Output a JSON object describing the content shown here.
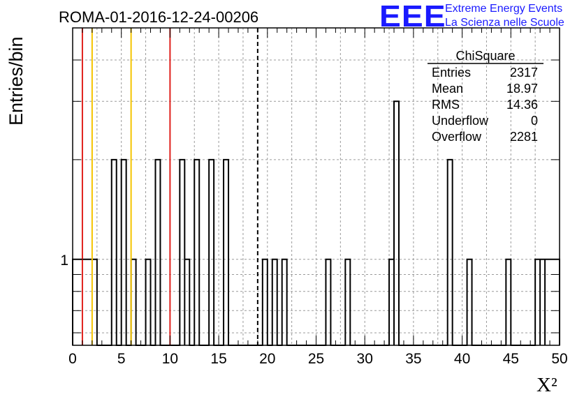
{
  "title": "ROMA-01-2016-12-24-00206",
  "logo": {
    "mark": "EEE",
    "line1": "Extreme Energy Events",
    "line2": "La Scienza nelle Scuole",
    "color": "#1a1aff"
  },
  "chart_data": {
    "type": "histogram",
    "xlabel": "X²",
    "ylabel": "Entries/bin",
    "xlim": [
      0,
      50
    ],
    "ylog": true,
    "ylim": [
      0.55,
      5
    ],
    "grid": true,
    "x_ticks": [
      0,
      5,
      10,
      15,
      20,
      25,
      30,
      35,
      40,
      45,
      50
    ],
    "y_tick_labels": [
      {
        "value": 1,
        "label": "1"
      }
    ],
    "bins": [
      {
        "x0": 0.0,
        "x1": 2.5,
        "count": 1
      },
      {
        "x0": 4.0,
        "x1": 4.5,
        "count": 2
      },
      {
        "x0": 5.0,
        "x1": 5.5,
        "count": 2
      },
      {
        "x0": 6.0,
        "x1": 6.5,
        "count": 1
      },
      {
        "x0": 7.5,
        "x1": 8.0,
        "count": 1
      },
      {
        "x0": 8.5,
        "x1": 9.0,
        "count": 2
      },
      {
        "x0": 11.0,
        "x1": 11.5,
        "count": 2
      },
      {
        "x0": 11.5,
        "x1": 12.0,
        "count": 1
      },
      {
        "x0": 12.5,
        "x1": 13.0,
        "count": 2
      },
      {
        "x0": 14.0,
        "x1": 14.5,
        "count": 2
      },
      {
        "x0": 15.5,
        "x1": 16.0,
        "count": 2
      },
      {
        "x0": 19.5,
        "x1": 20.0,
        "count": 1
      },
      {
        "x0": 20.5,
        "x1": 21.0,
        "count": 1
      },
      {
        "x0": 21.5,
        "x1": 22.0,
        "count": 1
      },
      {
        "x0": 26.0,
        "x1": 26.5,
        "count": 1
      },
      {
        "x0": 28.0,
        "x1": 28.5,
        "count": 1
      },
      {
        "x0": 32.5,
        "x1": 33.0,
        "count": 1
      },
      {
        "x0": 33.0,
        "x1": 33.5,
        "count": 3
      },
      {
        "x0": 38.5,
        "x1": 39.0,
        "count": 2
      },
      {
        "x0": 40.5,
        "x1": 41.0,
        "count": 1
      },
      {
        "x0": 44.5,
        "x1": 45.0,
        "count": 1
      },
      {
        "x0": 47.5,
        "x1": 48.0,
        "count": 1
      },
      {
        "x0": 48.0,
        "x1": 48.5,
        "count": 1
      },
      {
        "x0": 48.5,
        "x1": 50.0,
        "count": 1
      }
    ],
    "vertical_lines": [
      {
        "x": 1.0,
        "color": "#e0201c",
        "style": "solid"
      },
      {
        "x": 2.0,
        "color": "#f5c400",
        "style": "solid"
      },
      {
        "x": 6.0,
        "color": "#f5c400",
        "style": "solid"
      },
      {
        "x": 10.0,
        "color": "#e0201c",
        "style": "solid"
      },
      {
        "x": 19.0,
        "color": "#000000",
        "style": "dashed"
      }
    ],
    "stats_box": {
      "title": "ChiSquare",
      "rows": [
        {
          "label": "Entries",
          "value": "2317"
        },
        {
          "label": "Mean",
          "value": "18.97"
        },
        {
          "label": "RMS",
          "value": "14.36"
        },
        {
          "label": "Underflow",
          "value": "0"
        },
        {
          "label": "Overflow",
          "value": "2281"
        }
      ]
    }
  }
}
